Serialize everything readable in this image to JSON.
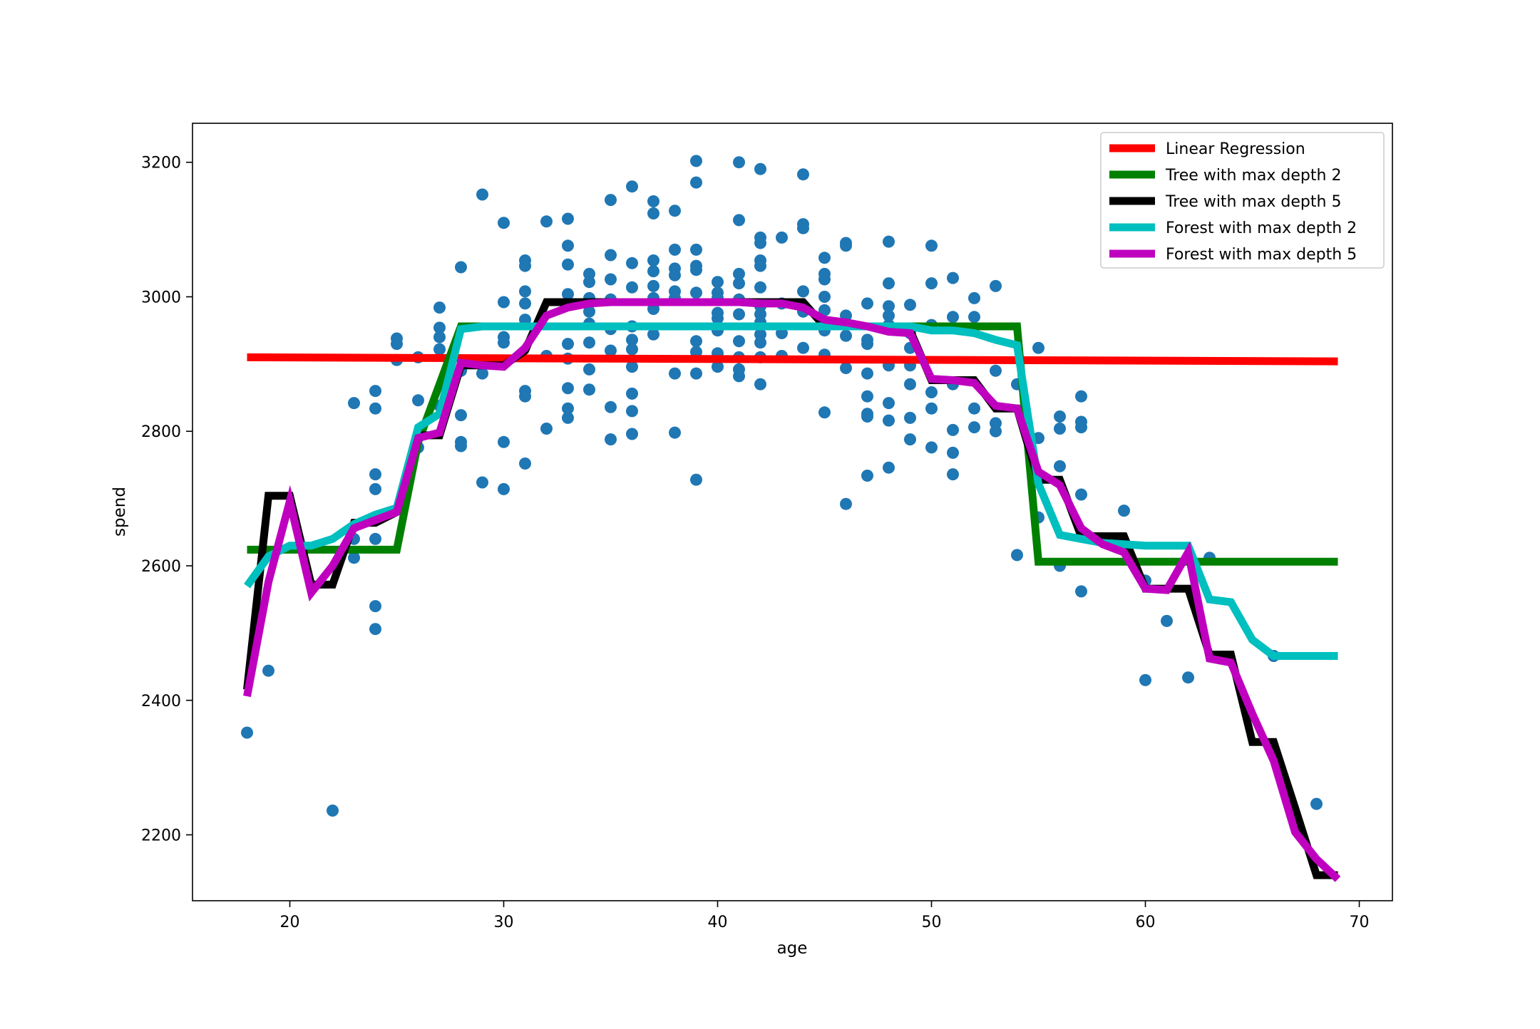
{
  "chart_data": {
    "type": "line",
    "title": "",
    "xlabel": "age",
    "ylabel": "spend",
    "xlim": [
      15.45,
      71.55
    ],
    "ylim": [
      2102,
      3258
    ],
    "xticks": [
      20,
      30,
      40,
      50,
      60,
      70
    ],
    "yticks": [
      2200,
      2400,
      2600,
      2800,
      3000,
      3200
    ],
    "grid": false,
    "legend_position": "top-right",
    "scatter": {
      "color": "#1f77b4",
      "points": [
        [
          18,
          2352
        ],
        [
          19,
          2444
        ],
        [
          22,
          2236
        ],
        [
          23,
          2842
        ],
        [
          23,
          2612
        ],
        [
          23,
          2640
        ],
        [
          24,
          2860
        ],
        [
          24,
          2834
        ],
        [
          24,
          2736
        ],
        [
          24,
          2714
        ],
        [
          24,
          2640
        ],
        [
          24,
          2540
        ],
        [
          24,
          2506
        ],
        [
          25,
          2938
        ],
        [
          25,
          2930
        ],
        [
          25,
          2906
        ],
        [
          26,
          2910
        ],
        [
          26,
          2846
        ],
        [
          26,
          2776
        ],
        [
          27,
          2984
        ],
        [
          27,
          2954
        ],
        [
          27,
          2940
        ],
        [
          27,
          2922
        ],
        [
          27,
          2838
        ],
        [
          28,
          3044
        ],
        [
          28,
          2890
        ],
        [
          28,
          2824
        ],
        [
          28,
          2784
        ],
        [
          28,
          2778
        ],
        [
          29,
          3152
        ],
        [
          29,
          2886
        ],
        [
          29,
          2724
        ],
        [
          30,
          3110
        ],
        [
          30,
          2992
        ],
        [
          30,
          2940
        ],
        [
          30,
          2932
        ],
        [
          30,
          2784
        ],
        [
          30,
          2714
        ],
        [
          31,
          3054
        ],
        [
          31,
          3046
        ],
        [
          31,
          3008
        ],
        [
          31,
          2990
        ],
        [
          31,
          2966
        ],
        [
          31,
          2860
        ],
        [
          31,
          2852
        ],
        [
          31,
          2752
        ],
        [
          32,
          3112
        ],
        [
          32,
          2912
        ],
        [
          32,
          2804
        ],
        [
          33,
          3116
        ],
        [
          33,
          3076
        ],
        [
          33,
          3048
        ],
        [
          33,
          3004
        ],
        [
          33,
          2930
        ],
        [
          33,
          2908
        ],
        [
          33,
          2864
        ],
        [
          33,
          2834
        ],
        [
          33,
          2820
        ],
        [
          34,
          3034
        ],
        [
          34,
          3022
        ],
        [
          34,
          2998
        ],
        [
          34,
          2978
        ],
        [
          34,
          2960
        ],
        [
          34,
          2932
        ],
        [
          34,
          2892
        ],
        [
          34,
          2862
        ],
        [
          35,
          3144
        ],
        [
          35,
          3062
        ],
        [
          35,
          3026
        ],
        [
          35,
          2996
        ],
        [
          35,
          2952
        ],
        [
          35,
          2920
        ],
        [
          35,
          2836
        ],
        [
          35,
          2788
        ],
        [
          36,
          3164
        ],
        [
          36,
          3050
        ],
        [
          36,
          3014
        ],
        [
          36,
          2956
        ],
        [
          36,
          2936
        ],
        [
          36,
          2922
        ],
        [
          36,
          2896
        ],
        [
          36,
          2856
        ],
        [
          36,
          2830
        ],
        [
          36,
          2796
        ],
        [
          37,
          3142
        ],
        [
          37,
          3124
        ],
        [
          37,
          3054
        ],
        [
          37,
          3038
        ],
        [
          37,
          3016
        ],
        [
          37,
          2998
        ],
        [
          37,
          2982
        ],
        [
          37,
          2944
        ],
        [
          38,
          3128
        ],
        [
          38,
          3070
        ],
        [
          38,
          3042
        ],
        [
          38,
          3032
        ],
        [
          38,
          3008
        ],
        [
          38,
          2998
        ],
        [
          38,
          2886
        ],
        [
          38,
          2798
        ],
        [
          39,
          3202
        ],
        [
          39,
          3170
        ],
        [
          39,
          3070
        ],
        [
          39,
          3046
        ],
        [
          39,
          3040
        ],
        [
          39,
          3006
        ],
        [
          39,
          2934
        ],
        [
          39,
          2918
        ],
        [
          39,
          2886
        ],
        [
          39,
          2728
        ],
        [
          40,
          3022
        ],
        [
          40,
          3006
        ],
        [
          40,
          2998
        ],
        [
          40,
          2976
        ],
        [
          40,
          2968
        ],
        [
          40,
          2950
        ],
        [
          40,
          2916
        ],
        [
          40,
          2896
        ],
        [
          41,
          3200
        ],
        [
          41,
          3114
        ],
        [
          41,
          3034
        ],
        [
          41,
          3020
        ],
        [
          41,
          2996
        ],
        [
          41,
          2974
        ],
        [
          41,
          2934
        ],
        [
          41,
          2910
        ],
        [
          41,
          2892
        ],
        [
          41,
          2882
        ],
        [
          42,
          3190
        ],
        [
          42,
          3088
        ],
        [
          42,
          3080
        ],
        [
          42,
          3054
        ],
        [
          42,
          3046
        ],
        [
          42,
          3014
        ],
        [
          42,
          2986
        ],
        [
          42,
          2974
        ],
        [
          42,
          2962
        ],
        [
          42,
          2944
        ],
        [
          42,
          2932
        ],
        [
          42,
          2910
        ],
        [
          42,
          2870
        ],
        [
          43,
          3088
        ],
        [
          43,
          2990
        ],
        [
          43,
          2946
        ],
        [
          43,
          2912
        ],
        [
          44,
          3182
        ],
        [
          44,
          3108
        ],
        [
          44,
          3102
        ],
        [
          44,
          3008
        ],
        [
          44,
          2978
        ],
        [
          44,
          2924
        ],
        [
          45,
          3058
        ],
        [
          45,
          3034
        ],
        [
          45,
          3026
        ],
        [
          45,
          3000
        ],
        [
          45,
          2980
        ],
        [
          45,
          2950
        ],
        [
          45,
          2914
        ],
        [
          45,
          2828
        ],
        [
          46,
          3080
        ],
        [
          46,
          3076
        ],
        [
          46,
          2972
        ],
        [
          46,
          2942
        ],
        [
          46,
          2894
        ],
        [
          46,
          2692
        ],
        [
          47,
          2990
        ],
        [
          47,
          2936
        ],
        [
          47,
          2930
        ],
        [
          47,
          2886
        ],
        [
          47,
          2852
        ],
        [
          47,
          2826
        ],
        [
          47,
          2822
        ],
        [
          47,
          2734
        ],
        [
          48,
          3082
        ],
        [
          48,
          3020
        ],
        [
          48,
          2986
        ],
        [
          48,
          2972
        ],
        [
          48,
          2958
        ],
        [
          48,
          2898
        ],
        [
          48,
          2842
        ],
        [
          48,
          2816
        ],
        [
          48,
          2746
        ],
        [
          49,
          2988
        ],
        [
          49,
          2946
        ],
        [
          49,
          2924
        ],
        [
          49,
          2898
        ],
        [
          49,
          2870
        ],
        [
          49,
          2820
        ],
        [
          49,
          2788
        ],
        [
          50,
          3076
        ],
        [
          50,
          3020
        ],
        [
          50,
          2958
        ],
        [
          50,
          2858
        ],
        [
          50,
          2834
        ],
        [
          50,
          2776
        ],
        [
          51,
          3028
        ],
        [
          51,
          2970
        ],
        [
          51,
          2870
        ],
        [
          51,
          2802
        ],
        [
          51,
          2768
        ],
        [
          51,
          2736
        ],
        [
          52,
          2998
        ],
        [
          52,
          2970
        ],
        [
          52,
          2834
        ],
        [
          52,
          2806
        ],
        [
          53,
          3016
        ],
        [
          53,
          2890
        ],
        [
          53,
          2812
        ],
        [
          53,
          2800
        ],
        [
          54,
          2870
        ],
        [
          54,
          2616
        ],
        [
          55,
          2924
        ],
        [
          55,
          2790
        ],
        [
          55,
          2672
        ],
        [
          56,
          2822
        ],
        [
          56,
          2804
        ],
        [
          56,
          2748
        ],
        [
          56,
          2600
        ],
        [
          57,
          2852
        ],
        [
          57,
          2814
        ],
        [
          57,
          2806
        ],
        [
          57,
          2706
        ],
        [
          57,
          2562
        ],
        [
          59,
          2682
        ],
        [
          60,
          2578
        ],
        [
          60,
          2430
        ],
        [
          61,
          2518
        ],
        [
          62,
          2434
        ],
        [
          63,
          2612
        ],
        [
          66,
          2466
        ],
        [
          68,
          2246
        ]
      ]
    },
    "series": [
      {
        "name": "Linear Regression",
        "color": "#ff0000",
        "width": 11,
        "x": [
          18,
          69
        ],
        "y": [
          2910,
          2904
        ]
      },
      {
        "name": "Tree with max depth 2",
        "color": "#008000",
        "width": 11,
        "x": [
          18,
          25,
          26,
          28,
          54,
          55,
          69
        ],
        "y": [
          2624,
          2624,
          2784,
          2956,
          2956,
          2606,
          2606
        ]
      },
      {
        "name": "Tree with max depth 5",
        "color": "#000000",
        "width": 11,
        "x": [
          18,
          19,
          20,
          21,
          22,
          23,
          24,
          25,
          26,
          27,
          28,
          29,
          30,
          31,
          32,
          33,
          34,
          35,
          36,
          37,
          38,
          39,
          40,
          41,
          42,
          43,
          44,
          45,
          46,
          47,
          48,
          49,
          50,
          51,
          52,
          53,
          54,
          55,
          56,
          57,
          58,
          59,
          60,
          61,
          62,
          63,
          64,
          65,
          66,
          67,
          68,
          69
        ],
        "y": [
          2416,
          2704,
          2704,
          2572,
          2572,
          2664,
          2664,
          2680,
          2794,
          2794,
          2898,
          2898,
          2898,
          2920,
          2992,
          2992,
          2992,
          2992,
          2992,
          2992,
          2992,
          2992,
          2992,
          2992,
          2992,
          2992,
          2992,
          2956,
          2956,
          2956,
          2950,
          2950,
          2876,
          2876,
          2876,
          2834,
          2834,
          2728,
          2728,
          2644,
          2644,
          2644,
          2566,
          2566,
          2566,
          2468,
          2468,
          2338,
          2338,
          2240,
          2140,
          2140
        ]
      },
      {
        "name": "Forest with max depth 2",
        "color": "#00bfbf",
        "width": 11,
        "x": [
          18,
          19,
          20,
          21,
          22,
          23,
          24,
          25,
          26,
          27,
          28,
          29,
          30,
          31,
          32,
          33,
          34,
          35,
          36,
          37,
          38,
          39,
          40,
          41,
          42,
          43,
          44,
          45,
          46,
          47,
          48,
          49,
          50,
          51,
          52,
          53,
          54,
          55,
          56,
          57,
          58,
          59,
          60,
          61,
          62,
          63,
          64,
          65,
          66,
          67,
          68,
          69
        ],
        "y": [
          2570,
          2614,
          2630,
          2630,
          2640,
          2662,
          2676,
          2686,
          2806,
          2826,
          2952,
          2956,
          2956,
          2956,
          2956,
          2956,
          2956,
          2956,
          2956,
          2956,
          2956,
          2956,
          2956,
          2956,
          2956,
          2956,
          2956,
          2956,
          2956,
          2956,
          2956,
          2956,
          2950,
          2950,
          2946,
          2936,
          2928,
          2722,
          2646,
          2640,
          2634,
          2632,
          2630,
          2630,
          2630,
          2550,
          2546,
          2490,
          2466,
          2466,
          2466,
          2466
        ]
      },
      {
        "name": "Forest with max depth 5",
        "color": "#bf00bf",
        "width": 11,
        "x": [
          18,
          19,
          20,
          21,
          22,
          23,
          24,
          25,
          26,
          27,
          28,
          29,
          30,
          31,
          32,
          33,
          34,
          35,
          36,
          37,
          38,
          39,
          40,
          41,
          42,
          43,
          44,
          45,
          46,
          47,
          48,
          49,
          50,
          51,
          52,
          53,
          54,
          55,
          56,
          57,
          58,
          59,
          60,
          61,
          62,
          63,
          64,
          65,
          66,
          67,
          68,
          69
        ],
        "y": [
          2406,
          2576,
          2696,
          2560,
          2600,
          2656,
          2668,
          2680,
          2790,
          2798,
          2902,
          2898,
          2896,
          2924,
          2972,
          2984,
          2990,
          2992,
          2992,
          2992,
          2992,
          2992,
          2992,
          2992,
          2990,
          2990,
          2984,
          2966,
          2962,
          2956,
          2948,
          2946,
          2878,
          2876,
          2872,
          2838,
          2834,
          2740,
          2720,
          2656,
          2632,
          2620,
          2566,
          2564,
          2620,
          2462,
          2456,
          2380,
          2310,
          2204,
          2164,
          2134
        ]
      }
    ]
  }
}
